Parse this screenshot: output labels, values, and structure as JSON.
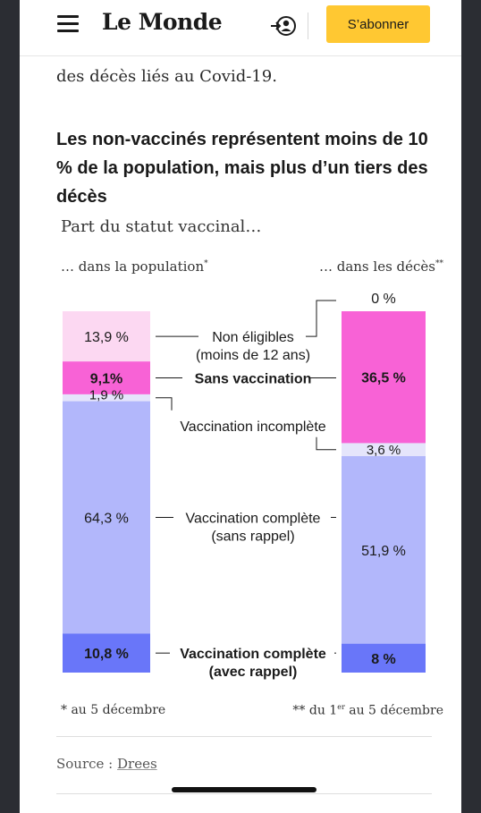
{
  "header": {
    "logo": "Le Monde",
    "subscribe_label": "S’abonner"
  },
  "article": {
    "prev_text": "des décès liés au Covid-19.",
    "source_prefix": "Source : ",
    "source_link": "Drees"
  },
  "chart_data": {
    "type": "bar",
    "stacked": true,
    "title": "Les non-vaccinés représentent moins de 10 % de la population, mais plus d’un tiers des décès",
    "subtitle": "Part du statut vaccinal…",
    "columns": [
      {
        "label": "… dans la population",
        "label_mark": "*"
      },
      {
        "label": "… dans les décès",
        "label_mark": "**"
      }
    ],
    "series": [
      {
        "name": "Non éligibles (moins de 12 ans)",
        "color": "#fcd8f2",
        "values": [
          13.9,
          0
        ],
        "labels": [
          "13,9 %",
          "0 %"
        ],
        "bold": false
      },
      {
        "name": "Sans vaccination",
        "color": "#f862d6",
        "values": [
          9.1,
          36.5
        ],
        "labels": [
          "9,1%",
          "36,5 %"
        ],
        "bold": true
      },
      {
        "name": "Vaccination incomplète",
        "color": "#e5e5fb",
        "values": [
          1.9,
          3.6
        ],
        "labels": [
          "1,9 %",
          "3,6 %"
        ],
        "bold": false
      },
      {
        "name": "Vaccination complète (sans rappel)",
        "color": "#b2b7fb",
        "values": [
          64.3,
          51.9
        ],
        "labels": [
          "64,3 %",
          "51,9 %"
        ],
        "bold": false
      },
      {
        "name": "Vaccination complète (avec rappel)",
        "color": "#6976f9",
        "values": [
          10.8,
          8
        ],
        "labels": [
          "10,8 %",
          "8 %"
        ],
        "bold": true
      }
    ],
    "legend_labels": [
      [
        "Non éligibles",
        "(moins de 12 ans)"
      ],
      [
        "Sans vaccination"
      ],
      [
        "Vaccination incomplète"
      ],
      [
        "Vaccination complète",
        "(sans rappel)"
      ],
      [
        "Vaccination complète",
        "(avec rappel)"
      ]
    ],
    "notes": {
      "left": "au 5 décembre",
      "left_mark": "* ",
      "right_pre": " du 1",
      "right_sup": "er",
      "right_post": " au 5 décembre",
      "right_mark": "**"
    }
  }
}
